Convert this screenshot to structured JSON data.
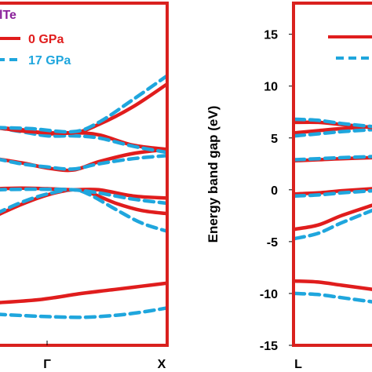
{
  "colors": {
    "frame": "#d9211e",
    "pressure_0": "#e01d1d",
    "pressure_17": "#1fa6dd",
    "title": "#8a1f9a",
    "text": "#000000"
  },
  "chart_data": [
    {
      "type": "line",
      "panel": "left",
      "title": "lTe",
      "x_ticks": [
        "Γ",
        "X"
      ],
      "xlim": [
        0,
        1
      ],
      "ylim": [
        -15,
        18
      ],
      "legend": [
        {
          "name": "0 GPa",
          "style": "solid"
        },
        {
          "name": "17 GPa",
          "style": "dashed"
        }
      ],
      "legend_position": "top-left",
      "series": [
        {
          "name": "0 GPa",
          "band": 1,
          "x": [
            0,
            0.25,
            0.5,
            0.7,
            0.85,
            1.0
          ],
          "y": [
            -10.9,
            -10.6,
            -10.0,
            -9.6,
            -9.3,
            -9.0
          ]
        },
        {
          "name": "17 GPa",
          "band": 1,
          "x": [
            0,
            0.25,
            0.5,
            0.7,
            0.85,
            1.0
          ],
          "y": [
            -12.0,
            -12.2,
            -12.3,
            -12.1,
            -11.8,
            -11.4
          ]
        },
        {
          "name": "0 GPa",
          "band": 2,
          "x": [
            0,
            0.15,
            0.3,
            0.45,
            0.55,
            0.7,
            0.85,
            1.0
          ],
          "y": [
            -2.5,
            -1.4,
            -0.5,
            0.0,
            -0.3,
            -1.3,
            -2.0,
            -2.3
          ]
        },
        {
          "name": "17 GPa",
          "band": 2,
          "x": [
            0,
            0.15,
            0.3,
            0.45,
            0.55,
            0.7,
            0.85,
            1.0
          ],
          "y": [
            -2.3,
            -1.2,
            -0.4,
            0.0,
            -0.5,
            -1.9,
            -3.2,
            -4.0
          ]
        },
        {
          "name": "0 GPa",
          "band": 3,
          "x": [
            0,
            0.15,
            0.3,
            0.45,
            0.6,
            0.8,
            1.0
          ],
          "y": [
            0.1,
            0.15,
            0.1,
            0.0,
            0.0,
            -0.6,
            -0.8
          ]
        },
        {
          "name": "17 GPa",
          "band": 3,
          "x": [
            0,
            0.15,
            0.3,
            0.45,
            0.6,
            0.8,
            1.0
          ],
          "y": [
            0.0,
            0.05,
            0.05,
            0.0,
            -0.3,
            -0.9,
            -1.3
          ]
        },
        {
          "name": "0 GPa",
          "band": 4,
          "x": [
            0,
            0.15,
            0.3,
            0.45,
            0.6,
            0.8,
            1.0
          ],
          "y": [
            3.0,
            2.6,
            2.1,
            1.9,
            2.7,
            3.5,
            3.9
          ]
        },
        {
          "name": "17 GPa",
          "band": 4,
          "x": [
            0,
            0.15,
            0.3,
            0.45,
            0.6,
            0.8,
            1.0
          ],
          "y": [
            3.0,
            2.5,
            2.2,
            2.0,
            2.5,
            3.0,
            3.3
          ]
        },
        {
          "name": "0 GPa",
          "band": 5,
          "x": [
            0,
            0.15,
            0.3,
            0.45,
            0.6,
            0.8,
            1.0
          ],
          "y": [
            6.0,
            5.8,
            5.4,
            5.5,
            5.3,
            4.3,
            3.9
          ]
        },
        {
          "name": "17 GPa",
          "band": 5,
          "x": [
            0,
            0.15,
            0.3,
            0.45,
            0.6,
            0.8,
            1.0
          ],
          "y": [
            6.0,
            5.6,
            5.2,
            5.2,
            5.0,
            4.2,
            3.6
          ]
        },
        {
          "name": "0 GPa",
          "band": 6,
          "x": [
            0,
            0.2,
            0.45,
            0.6,
            0.8,
            1.0
          ],
          "y": [
            6.0,
            5.6,
            5.5,
            6.3,
            8.0,
            10.2
          ]
        },
        {
          "name": "17 GPa",
          "band": 6,
          "x": [
            0,
            0.2,
            0.45,
            0.6,
            0.8,
            1.0
          ],
          "y": [
            6.0,
            5.9,
            5.6,
            6.5,
            8.7,
            11.0
          ]
        }
      ]
    },
    {
      "type": "line",
      "panel": "right",
      "ylabel": "Energy band gap (eV)",
      "x_ticks": [
        "L"
      ],
      "y_ticks": [
        "15",
        "10",
        "5",
        "0",
        "-5",
        "-10",
        "-15"
      ],
      "ylim": [
        -15,
        18
      ],
      "legend": [
        {
          "name": "",
          "style": "solid"
        },
        {
          "name": "",
          "style": "dashed"
        }
      ],
      "series": [
        {
          "name": "0 GPa",
          "band": 1,
          "x": [
            0,
            0.3,
            0.6,
            1.0
          ],
          "y": [
            -8.8,
            -8.9,
            -9.2,
            -9.6
          ]
        },
        {
          "name": "17 GPa",
          "band": 1,
          "x": [
            0,
            0.3,
            0.6,
            1.0
          ],
          "y": [
            -10.0,
            -10.1,
            -10.4,
            -10.8
          ]
        },
        {
          "name": "0 GPa",
          "band": 2,
          "x": [
            0,
            0.3,
            0.6,
            1.0
          ],
          "y": [
            -3.8,
            -3.4,
            -2.5,
            -1.5
          ]
        },
        {
          "name": "17 GPa",
          "band": 2,
          "x": [
            0,
            0.3,
            0.6,
            1.0
          ],
          "y": [
            -4.7,
            -4.2,
            -3.2,
            -2.0
          ]
        },
        {
          "name": "0 GPa",
          "band": 3,
          "x": [
            0,
            0.3,
            0.6,
            1.0
          ],
          "y": [
            -0.4,
            -0.3,
            -0.1,
            0.1
          ]
        },
        {
          "name": "17 GPa",
          "band": 3,
          "x": [
            0,
            0.3,
            0.6,
            1.0
          ],
          "y": [
            -0.6,
            -0.5,
            -0.3,
            -0.1
          ]
        },
        {
          "name": "0 GPa",
          "band": 4,
          "x": [
            0,
            0.3,
            0.6,
            1.0
          ],
          "y": [
            2.8,
            2.9,
            3.0,
            3.1
          ]
        },
        {
          "name": "17 GPa",
          "band": 4,
          "x": [
            0,
            0.3,
            0.6,
            1.0
          ],
          "y": [
            2.9,
            3.0,
            3.1,
            3.2
          ]
        },
        {
          "name": "0 GPa",
          "band": 5,
          "x": [
            0,
            0.3,
            0.6,
            1.0
          ],
          "y": [
            5.5,
            5.7,
            5.9,
            6.1
          ]
        },
        {
          "name": "17 GPa",
          "band": 5,
          "x": [
            0,
            0.3,
            0.6,
            1.0
          ],
          "y": [
            5.2,
            5.4,
            5.6,
            5.8
          ]
        },
        {
          "name": "0 GPa",
          "band": 6,
          "x": [
            0,
            0.3,
            0.6,
            1.0
          ],
          "y": [
            6.5,
            6.5,
            6.3,
            6.0
          ]
        },
        {
          "name": "17 GPa",
          "band": 6,
          "x": [
            0,
            0.3,
            0.6,
            1.0
          ],
          "y": [
            6.8,
            6.7,
            6.4,
            6.1
          ]
        }
      ]
    }
  ]
}
